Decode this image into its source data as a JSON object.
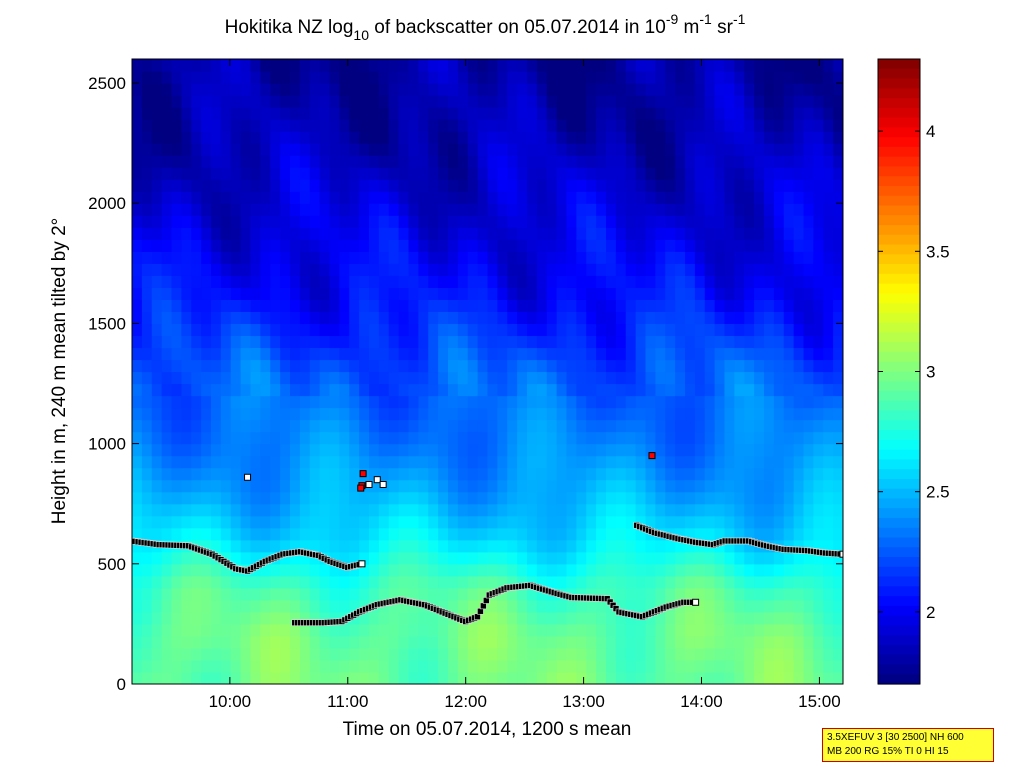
{
  "chart_data": {
    "type": "heatmap",
    "title": {
      "main": "Hokitika NZ log",
      "sub": "10",
      "mid": " of backscatter on 05.07.2014 in 10",
      "exp1": "-9",
      "unit1": " m",
      "exp2": "-1",
      "unit2": " sr",
      "exp3": "-1"
    },
    "xlabel": "Time on 05.07.2014, 1200 s mean",
    "ylabel": "Height in m, 240 m mean tilted by 2°",
    "xlim_hours": [
      9.17,
      15.2
    ],
    "ylim": [
      0,
      2600
    ],
    "x_ticks": [
      {
        "hour": 10,
        "label": "10:00"
      },
      {
        "hour": 11,
        "label": "11:00"
      },
      {
        "hour": 12,
        "label": "12:00"
      },
      {
        "hour": 13,
        "label": "13:00"
      },
      {
        "hour": 14,
        "label": "14:00"
      },
      {
        "hour": 15,
        "label": "15:00"
      }
    ],
    "y_ticks": [
      {
        "value": 0,
        "label": "0"
      },
      {
        "value": 500,
        "label": "500"
      },
      {
        "value": 1000,
        "label": "1000"
      },
      {
        "value": 1500,
        "label": "1500"
      },
      {
        "value": 2000,
        "label": "2000"
      },
      {
        "value": 2500,
        "label": "2500"
      }
    ],
    "colorbar": {
      "colormap": "jet",
      "range": [
        1.7,
        4.3
      ],
      "ticks": [
        {
          "value": 2,
          "label": "2"
        },
        {
          "value": 2.5,
          "label": "2.5"
        },
        {
          "value": 3,
          "label": "3"
        },
        {
          "value": 3.5,
          "label": "3.5"
        },
        {
          "value": 4,
          "label": "4"
        }
      ]
    },
    "field_profile": {
      "heights": [
        0,
        200,
        400,
        500,
        600,
        800,
        1000,
        1300,
        1600,
        2000,
        2300,
        2600
      ],
      "values": [
        2.95,
        2.95,
        2.85,
        2.72,
        2.6,
        2.45,
        2.35,
        2.25,
        2.05,
        1.92,
        1.82,
        1.78
      ]
    },
    "layer_series": [
      {
        "name": "upper-layer-west",
        "points": [
          [
            9.17,
            595
          ],
          [
            9.4,
            580
          ],
          [
            9.65,
            575
          ],
          [
            9.85,
            540
          ],
          [
            10.05,
            480
          ],
          [
            10.15,
            470
          ],
          [
            10.3,
            510
          ],
          [
            10.45,
            540
          ],
          [
            10.6,
            550
          ],
          [
            10.75,
            535
          ],
          [
            10.85,
            510
          ],
          [
            11.0,
            485
          ],
          [
            11.12,
            500
          ]
        ]
      },
      {
        "name": "lower-layer",
        "points": [
          [
            10.55,
            255
          ],
          [
            10.8,
            255
          ],
          [
            10.95,
            260
          ],
          [
            11.1,
            300
          ],
          [
            11.25,
            330
          ],
          [
            11.45,
            350
          ],
          [
            11.65,
            330
          ],
          [
            11.85,
            290
          ],
          [
            12.0,
            260
          ],
          [
            12.1,
            280
          ],
          [
            12.2,
            370
          ],
          [
            12.35,
            400
          ],
          [
            12.55,
            410
          ],
          [
            12.75,
            380
          ],
          [
            12.9,
            360
          ],
          [
            13.2,
            355
          ],
          [
            13.3,
            300
          ],
          [
            13.5,
            280
          ],
          [
            13.7,
            320
          ],
          [
            13.85,
            340
          ],
          [
            13.95,
            340
          ]
        ]
      },
      {
        "name": "upper-layer-east",
        "points": [
          [
            13.45,
            660
          ],
          [
            13.6,
            630
          ],
          [
            13.8,
            605
          ],
          [
            13.95,
            590
          ],
          [
            14.1,
            580
          ],
          [
            14.2,
            595
          ],
          [
            14.4,
            595
          ],
          [
            14.55,
            575
          ],
          [
            14.7,
            560
          ],
          [
            14.9,
            555
          ],
          [
            15.05,
            545
          ],
          [
            15.2,
            540
          ]
        ]
      }
    ],
    "isolated_points": [
      {
        "hour": 10.15,
        "height": 860,
        "color": "white"
      },
      {
        "hour": 11.13,
        "height": 875,
        "color": "red"
      },
      {
        "hour": 11.12,
        "height": 825,
        "color": "red"
      },
      {
        "hour": 11.11,
        "height": 815,
        "color": "red"
      },
      {
        "hour": 11.18,
        "height": 830,
        "color": "white"
      },
      {
        "hour": 11.25,
        "height": 850,
        "color": "white"
      },
      {
        "hour": 11.3,
        "height": 830,
        "color": "white"
      },
      {
        "hour": 13.58,
        "height": 950,
        "color": "red"
      }
    ]
  },
  "info_box": {
    "line1": "3.5XEFUV 3 [30 2500] NH 600",
    "line2": "MB 200 RG 15% TI 0 HI 15"
  }
}
